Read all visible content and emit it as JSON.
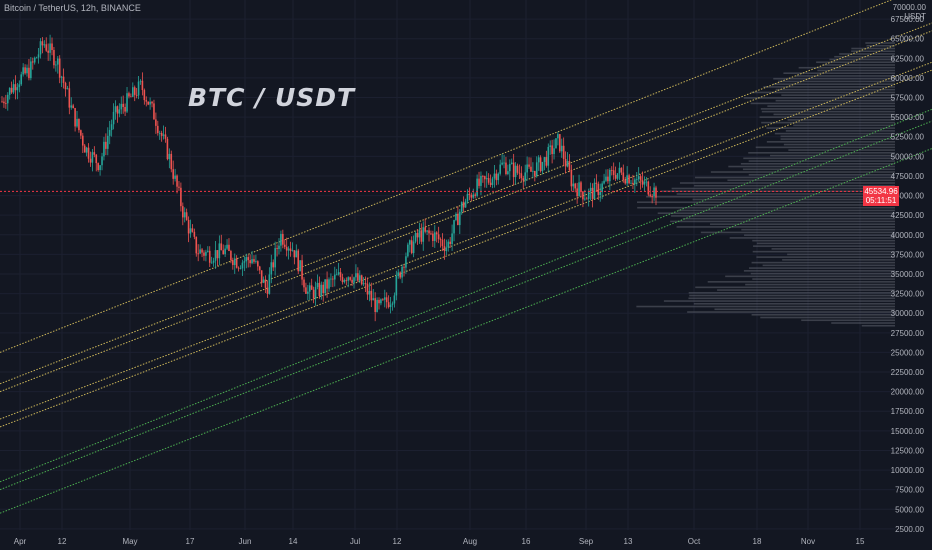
{
  "header": {
    "symbol_line": "Bitcoin / TetherUS, 12h, BINANCE"
  },
  "annotation": {
    "title": "BTC / USDT"
  },
  "price_axis": {
    "label_top": "70000.00",
    "currency": "USDT",
    "current_price": "45534.96",
    "countdown": "05:11:51"
  },
  "colors": {
    "background": "#131722",
    "up_candle": "#26a69a",
    "down_candle": "#ef5350",
    "yellow_channel": "#c9b458",
    "green_channel": "#4caf50",
    "price_line": "#f23645",
    "volume_profile": "#5d606b"
  },
  "chart_data": {
    "type": "candlestick",
    "title": "Bitcoin / TetherUS, 12h, BINANCE",
    "annotation": "BTC / USDT",
    "ylim": [
      1000,
      70000
    ],
    "y_ticks": [
      2500,
      5000,
      7500,
      10000,
      12500,
      15000,
      17500,
      20000,
      22500,
      25000,
      27500,
      30000,
      32500,
      35000,
      37500,
      40000,
      42500,
      45000,
      47500,
      50000,
      52500,
      55000,
      57500,
      60000,
      62500,
      65000,
      67500,
      70000
    ],
    "x_ticks": [
      "Apr",
      "12",
      "May",
      "17",
      "Jun",
      "14",
      "Jul",
      "12",
      "Aug",
      "16",
      "Sep",
      "13",
      "Oct",
      "18",
      "Nov",
      "15"
    ],
    "current_price": 45534.96,
    "price_path": [
      [
        "Apr",
        57000
      ],
      [
        "7",
        59500
      ],
      [
        "12",
        61000
      ],
      [
        "14",
        64500
      ],
      [
        "16",
        62000
      ],
      [
        "18",
        56000
      ],
      [
        "22",
        51000
      ],
      [
        "24",
        49000
      ],
      [
        "Apr 28",
        55000
      ],
      [
        "May",
        57000
      ],
      [
        "8",
        59000
      ],
      [
        "12",
        55000
      ],
      [
        "13",
        50000
      ],
      [
        "17",
        43000
      ],
      [
        "19",
        38000
      ],
      [
        "21",
        37500
      ],
      [
        "24",
        38000
      ],
      [
        "28",
        36500
      ],
      [
        "Jun",
        37000
      ],
      [
        "8",
        33000
      ],
      [
        "14",
        40000
      ],
      [
        "17",
        38000
      ],
      [
        "22",
        32500
      ],
      [
        "25",
        33000
      ],
      [
        "Jul",
        34500
      ],
      [
        "6",
        35000
      ],
      [
        "12",
        33500
      ],
      [
        "20",
        30500
      ],
      [
        "23",
        32000
      ],
      [
        "26",
        37500
      ],
      [
        "28",
        40000
      ],
      [
        "Aug",
        40000
      ],
      [
        "3",
        38500
      ],
      [
        "7",
        43500
      ],
      [
        "12",
        46000
      ],
      [
        "16",
        47000
      ],
      [
        "20",
        49000
      ],
      [
        "24",
        48000
      ],
      [
        "28",
        48000
      ],
      [
        "Sep",
        49500
      ],
      [
        "6",
        52000
      ],
      [
        "7",
        46500
      ],
      [
        "10",
        45000
      ],
      [
        "13",
        46000
      ],
      [
        "15",
        48000
      ],
      [
        "17",
        47500
      ],
      [
        "19",
        46500
      ],
      [
        "20",
        45535
      ]
    ],
    "channels": [
      {
        "name": "",
        "color": "yellow",
        "points": [
          [
            "Apr",
            25000
          ],
          [
            "Nov 15+",
            72000
          ]
        ]
      },
      {
        "name": "",
        "color": "yellow",
        "points": [
          [
            "Apr",
            21000
          ],
          [
            "Nov 15+",
            67000
          ]
        ]
      },
      {
        "name": "",
        "color": "yellow",
        "points": [
          [
            "Apr",
            20000
          ],
          [
            "Nov 15+",
            66000
          ]
        ]
      },
      {
        "name": "",
        "color": "yellow",
        "points": [
          [
            "Apr",
            16500
          ],
          [
            "Nov 15+",
            62000
          ]
        ]
      },
      {
        "name": "",
        "color": "yellow",
        "points": [
          [
            "Apr",
            15500
          ],
          [
            "Nov 15+",
            61000
          ]
        ]
      },
      {
        "name": "",
        "color": "green",
        "points": [
          [
            "Apr",
            8500
          ],
          [
            "Nov 15+",
            56000
          ]
        ]
      },
      {
        "name": "",
        "color": "green",
        "points": [
          [
            "Apr",
            7500
          ],
          [
            "Nov 15+",
            54500
          ]
        ]
      },
      {
        "name": "",
        "color": "green",
        "points": [
          [
            "Apr",
            4500
          ],
          [
            "Nov 15+",
            51000
          ]
        ]
      }
    ],
    "volume_profile_peaks": [
      [
        30500,
        1.0
      ],
      [
        31000,
        0.9
      ],
      [
        33000,
        0.75
      ],
      [
        35000,
        0.6
      ],
      [
        37000,
        0.5
      ],
      [
        39000,
        0.55
      ],
      [
        41000,
        0.8
      ],
      [
        43500,
        0.95
      ],
      [
        45500,
        0.9
      ],
      [
        47500,
        0.7
      ],
      [
        50000,
        0.55
      ],
      [
        52500,
        0.45
      ],
      [
        55000,
        0.5
      ],
      [
        57500,
        0.55
      ],
      [
        60000,
        0.45
      ],
      [
        62500,
        0.25
      ],
      [
        64500,
        0.1
      ]
    ],
    "grid": true
  }
}
